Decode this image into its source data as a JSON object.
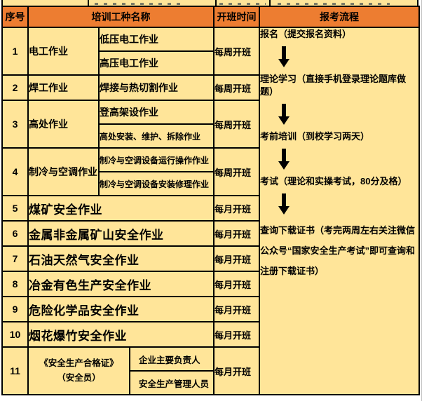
{
  "colors": {
    "header_bg": "#ED7D31",
    "cell_bg": "#FFE599",
    "process_bg": "#9DC3E6",
    "border": "#000000"
  },
  "header": {
    "no": "序号",
    "name": "培训工种名称",
    "time": "开班时间",
    "process": "报考流程"
  },
  "rows": [
    {
      "no": "1",
      "category": "电工作业",
      "subs": [
        "低压电工作业",
        "高压电工作业"
      ],
      "time": "每周开班"
    },
    {
      "no": "2",
      "category": "焊工作业",
      "subs": [
        "焊接与热切割作业"
      ],
      "time": "每周开班"
    },
    {
      "no": "3",
      "category": "高处作业",
      "subs": [
        "登高架设作业",
        "高处安装、维护、拆除作业"
      ],
      "time": "每周开班"
    },
    {
      "no": "4",
      "category": "制冷与空调作业",
      "subs": [
        "制冷与空调设备运行操作作业",
        "制冷与空调设备安装修理作业"
      ],
      "time": "每周开班"
    },
    {
      "no": "5",
      "category": "煤矿安全作业",
      "subs": [],
      "time": "每月开班"
    },
    {
      "no": "6",
      "category": "金属非金属矿山安全作业",
      "subs": [],
      "time": "每月开班"
    },
    {
      "no": "7",
      "category": "石油天然气安全作业",
      "subs": [],
      "time": "每月开班"
    },
    {
      "no": "8",
      "category": "冶金有色生产安全作业",
      "subs": [],
      "time": "每月开班"
    },
    {
      "no": "9",
      "category": "危险化学品安全作业",
      "subs": [],
      "time": "每月开班"
    },
    {
      "no": "10",
      "category": "烟花爆竹安全作业",
      "subs": [],
      "time": "每月开班"
    },
    {
      "no": "11",
      "category": "《安全生产合格证》\n（安全员）",
      "subs": [
        "企业主要负责人",
        "安全生产管理人员"
      ],
      "time": "每月开班",
      "wide_category": true
    }
  ],
  "process": {
    "steps": [
      "报名（提交报名资料）",
      "理论学习（直接手机登录理论题库做题）",
      "考前培训（到校学习两天）",
      "考试（理论和实操考试，80分及格）",
      "查询下载证书（考完两周左右关注微信公众号“国家安全生产考试”即可查询和注册下载证书）"
    ]
  }
}
